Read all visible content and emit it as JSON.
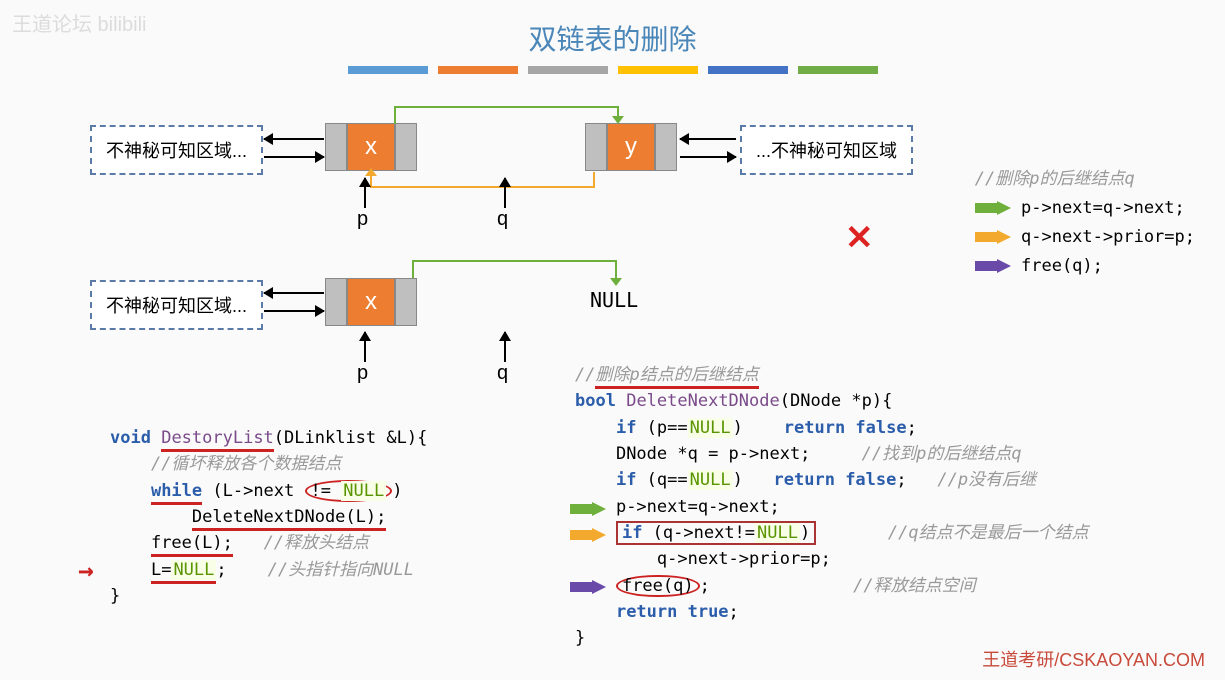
{
  "title": "双链表的删除",
  "watermark_tl": "王道论坛 bilibili",
  "watermark_br": "王道考研/CSKAOYAN.COM",
  "stripes": [
    "#5a9bd5",
    "#ed7d31",
    "#a6a6a6",
    "#ffc000",
    "#4472c4",
    "#70ad47"
  ],
  "diagram1": {
    "left_box": "不神秘可知区域...",
    "right_box": "...不神秘可知区域",
    "node_x": {
      "label": "x",
      "color": "#ed7d31"
    },
    "node_y": {
      "label": "y",
      "color": "#ed7d31"
    },
    "ptr_p": "p",
    "ptr_q": "q"
  },
  "diagram2": {
    "left_box": "不神秘可知区域...",
    "node_x": {
      "label": "x",
      "color": "#ed7d31"
    },
    "null_label": "NULL",
    "ptr_p": "p",
    "ptr_q": "q"
  },
  "legend": {
    "comment": "//删除p的后继结点q",
    "line1": "p->next=q->next;",
    "line2": "q->next->prior=p;",
    "line3": "free(q);",
    "arrow_colors": [
      "#6fb03d",
      "#f2a92e",
      "#6a4aa8"
    ]
  },
  "code_left": {
    "sig_kw": "void",
    "sig_fn": "DestoryList",
    "sig_rest": "(DLinklist &L){",
    "c1": "//循坏释放各个数据结点",
    "while_kw": "while",
    "while_cond_pre": " (L->next ",
    "while_cond_op": "!=",
    "while_null": "NULL",
    "while_cond_post": ")",
    "call": "DeleteNextDNode(L);",
    "free": "free(L);",
    "free_cm": "//释放头结点",
    "lnull_pre": "L=",
    "lnull": "NULL",
    "lnull_post": ";",
    "lnull_cm": "//头指针指向NULL",
    "close": "}"
  },
  "code_right": {
    "c0": "//删除p结点的后继结点",
    "l1_kw": "bool",
    "l1_fn": "DeleteNextDNode",
    "l1_rest": "(DNode *p){",
    "l2_if": "if",
    "l2_cond": " (p==",
    "l2_null": "NULL",
    "l2_post": ")",
    "l2_ret": "return false",
    "l2_semi": ";",
    "l3": "DNode *q = p->next;",
    "l3_cm": "//找到p的后继结点q",
    "l4_if": "if",
    "l4_cond": " (q==",
    "l4_null": "NULL",
    "l4_post": ")",
    "l4_ret": "return false",
    "l4_semi": ";",
    "l4_cm": "//p没有后继",
    "l5": "p->next=q->next;",
    "l6_if": "if",
    "l6_cond": " (q->next!=",
    "l6_null": "NULL",
    "l6_post": ")",
    "l6_cm": "//q结点不是最后一个结点",
    "l7": "q->next->prior=p;",
    "l8_free": "free(q)",
    "l8_semi": ";",
    "l8_cm": "//释放结点空间",
    "l9_ret": "return true",
    "l9_semi": ";",
    "close": "}"
  }
}
